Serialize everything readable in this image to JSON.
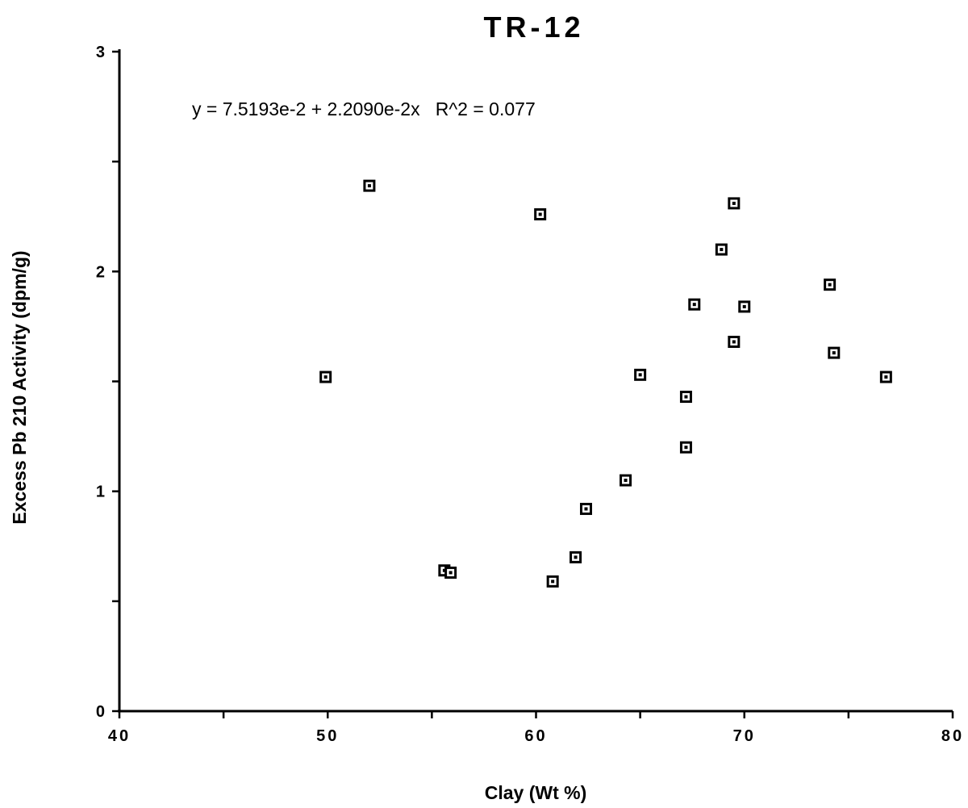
{
  "chart_data": {
    "type": "scatter",
    "title": "TR-12",
    "xlabel": "Clay (Wt %)",
    "ylabel": "Excess Pb 210 Activity (dpm/g)",
    "xlim": [
      40,
      80
    ],
    "ylim": [
      0,
      3
    ],
    "x_ticks": [
      40,
      50,
      60,
      70,
      80
    ],
    "x_tick_labels": [
      "40",
      "50",
      "60",
      "70",
      "80"
    ],
    "y_ticks": [
      0,
      1,
      2,
      3
    ],
    "y_tick_labels": [
      "0",
      "1",
      "2",
      "3"
    ],
    "annotation": "y = 7.5193e-2 + 2.2090e-2x   R^2 = 0.077",
    "grid": false,
    "marker": "square",
    "colors": {
      "marker": "#000000",
      "axis": "#000000"
    },
    "points": [
      {
        "x": 49.9,
        "y": 1.52
      },
      {
        "x": 52.0,
        "y": 2.39
      },
      {
        "x": 55.6,
        "y": 0.64
      },
      {
        "x": 55.9,
        "y": 0.63
      },
      {
        "x": 60.2,
        "y": 2.26
      },
      {
        "x": 60.8,
        "y": 0.59
      },
      {
        "x": 61.9,
        "y": 0.7
      },
      {
        "x": 62.4,
        "y": 0.92
      },
      {
        "x": 64.3,
        "y": 1.05
      },
      {
        "x": 65.0,
        "y": 1.53
      },
      {
        "x": 67.2,
        "y": 1.43
      },
      {
        "x": 67.2,
        "y": 1.2
      },
      {
        "x": 67.6,
        "y": 1.85
      },
      {
        "x": 68.9,
        "y": 2.1
      },
      {
        "x": 69.5,
        "y": 2.31
      },
      {
        "x": 69.5,
        "y": 1.68
      },
      {
        "x": 70.0,
        "y": 1.84
      },
      {
        "x": 74.1,
        "y": 1.94
      },
      {
        "x": 74.3,
        "y": 1.63
      },
      {
        "x": 76.8,
        "y": 1.52
      }
    ]
  }
}
